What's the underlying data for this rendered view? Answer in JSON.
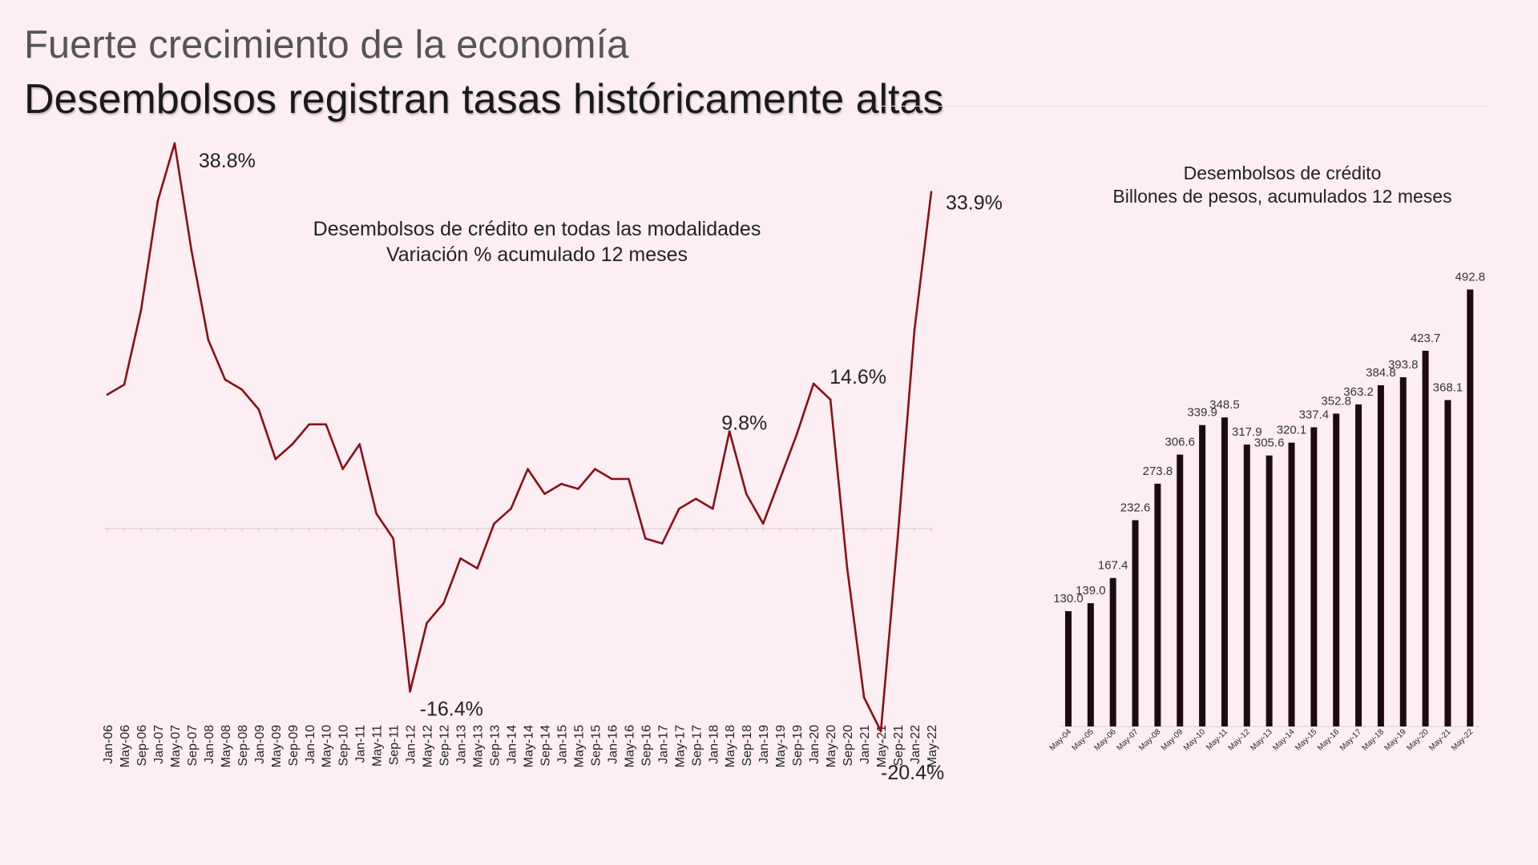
{
  "header": {
    "title": "Fuerte crecimiento de la economía",
    "subtitle": "Desembolsos registran tasas históricamente altas"
  },
  "colors": {
    "background": "#fdeef4",
    "line": "#8b0e14",
    "bars": "#1e0a10"
  },
  "chart_data": [
    {
      "type": "line",
      "title": "Desembolsos de crédito en todas las modalidades",
      "subtitle": "Variación  %  acumulado 12 meses",
      "xlabel": "",
      "ylabel": "",
      "ylim": [
        -25,
        45
      ],
      "grid": false,
      "x": [
        "Jan-06",
        "May-06",
        "Sep-06",
        "Jan-07",
        "May-07",
        "Sep-07",
        "Jan-08",
        "May-08",
        "Sep-08",
        "Jan-09",
        "May-09",
        "Sep-09",
        "Jan-10",
        "May-10",
        "Sep-10",
        "Jan-11",
        "May-11",
        "Sep-11",
        "Jan-12",
        "May-12",
        "Sep-12",
        "Jan-13",
        "May-13",
        "Sep-13",
        "Jan-14",
        "May-14",
        "Sep-14",
        "Jan-15",
        "May-15",
        "Sep-15",
        "Jan-16",
        "May-16",
        "Sep-16",
        "Jan-17",
        "May-17",
        "Sep-17",
        "Jan-18",
        "May-18",
        "Sep-18",
        "Jan-19",
        "May-19",
        "Sep-19",
        "Jan-20",
        "May-20",
        "Sep-20",
        "Jan-21",
        "May-21",
        "Sep-21",
        "Jan-22",
        "May-22"
      ],
      "series": [
        {
          "values": [
            13.5,
            14.5,
            22,
            33,
            38.8,
            28,
            19,
            15,
            14,
            12,
            7,
            8.5,
            10.5,
            10.5,
            6,
            8.5,
            1.5,
            -1,
            -16.4,
            -9.5,
            -7.5,
            -3,
            -4,
            0.5,
            2,
            6,
            3.5,
            4.5,
            4,
            6,
            5,
            5,
            -1,
            -1.5,
            2,
            3,
            2,
            9.8,
            3.5,
            0.5,
            5,
            9.5,
            14.6,
            13,
            -4,
            -17,
            -20.4,
            -1,
            20,
            33.9
          ]
        }
      ],
      "annotations": [
        "38.8%",
        "-16.4%",
        "9.8%",
        "14.6%",
        "-20.4%",
        "33.9%"
      ]
    },
    {
      "type": "bar",
      "title": "Desembolsos de crédito",
      "subtitle": "Billones de pesos, acumulados 12 meses",
      "xlabel": "",
      "ylabel": "",
      "ylim": [
        0,
        520
      ],
      "grid": false,
      "categories": [
        "May-04",
        "May-05",
        "May-06",
        "May-07",
        "May-08",
        "May-09",
        "May-10",
        "May-11",
        "May-12",
        "May-13",
        "May-14",
        "May-15",
        "May-16",
        "May-17",
        "May-18",
        "May-19",
        "May-20",
        "May-21",
        "May-22"
      ],
      "values": [
        130.0,
        139.0,
        167.4,
        232.6,
        273.8,
        306.6,
        339.9,
        348.5,
        317.9,
        305.6,
        320.1,
        337.4,
        352.8,
        363.2,
        384.8,
        393.8,
        423.7,
        368.1,
        492.8
      ],
      "labels": [
        "130.0",
        "139.0",
        "167.4",
        "232.6",
        "273.8",
        "306.6",
        "339.9",
        "348.5",
        "317.9",
        "305.6",
        "320.1",
        "337.4",
        "352.8",
        "363.2",
        "384.8",
        "393.8",
        "423.7",
        "368.1",
        "492.8"
      ]
    }
  ]
}
